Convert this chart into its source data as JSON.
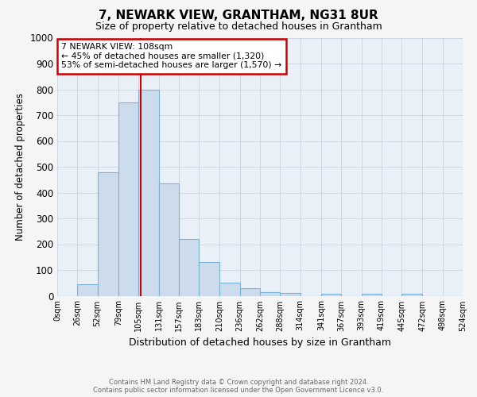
{
  "title": "7, NEWARK VIEW, GRANTHAM, NG31 8UR",
  "subtitle": "Size of property relative to detached houses in Grantham",
  "xlabel": "Distribution of detached houses by size in Grantham",
  "ylabel": "Number of detached properties",
  "bin_edges": [
    0,
    26,
    52,
    79,
    105,
    131,
    157,
    183,
    210,
    236,
    262,
    288,
    314,
    341,
    367,
    393,
    419,
    445,
    472,
    498,
    524
  ],
  "bar_heights": [
    0,
    45,
    480,
    750,
    800,
    435,
    220,
    130,
    50,
    28,
    15,
    10,
    0,
    8,
    0,
    8,
    0,
    8,
    0,
    0
  ],
  "bar_color": "#ccdcec",
  "bar_edge_color": "#7ab4d4",
  "property_size": 108,
  "vline_color": "#cc0000",
  "annotation_title": "7 NEWARK VIEW: 108sqm",
  "annotation_line1": "← 45% of detached houses are smaller (1,320)",
  "annotation_line2": "53% of semi-detached houses are larger (1,570) →",
  "annotation_box_color": "#cc0000",
  "ylim": [
    0,
    1000
  ],
  "yticks": [
    0,
    100,
    200,
    300,
    400,
    500,
    600,
    700,
    800,
    900,
    1000
  ],
  "footer_line1": "Contains HM Land Registry data © Crown copyright and database right 2024.",
  "footer_line2": "Contains public sector information licensed under the Open Government Licence v3.0.",
  "bg_color": "#f5f5f5",
  "plot_bg_color": "#eaf0f8",
  "grid_color": "#c8d4e0"
}
